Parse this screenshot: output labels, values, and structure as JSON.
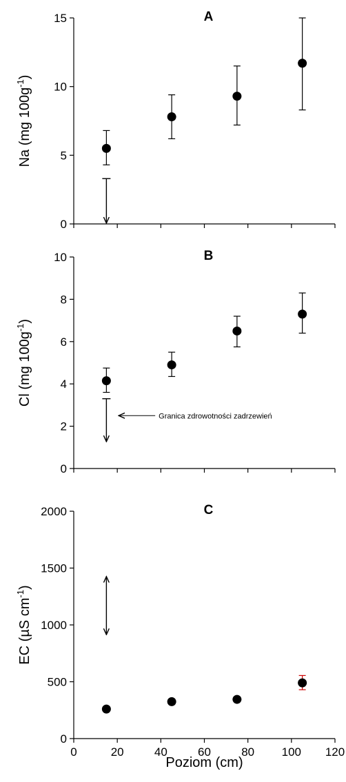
{
  "chart_data": [
    {
      "type": "scatter",
      "panel_label": "A",
      "ylabel": "Na (mg 100g",
      "ylabel_sup": "-1",
      "ylabel_close": ")",
      "xlim": [
        0,
        120
      ],
      "ylim": [
        0,
        15
      ],
      "x_ticks": [
        0,
        20,
        40,
        60,
        80,
        100,
        120
      ],
      "y_ticks": [
        0,
        5,
        10,
        15
      ],
      "points": [
        {
          "x": 15,
          "y": 5.5,
          "err_low": 4.3,
          "err_high": 6.8
        },
        {
          "x": 45,
          "y": 7.8,
          "err_low": 6.2,
          "err_high": 9.4
        },
        {
          "x": 75,
          "y": 9.3,
          "err_low": 7.2,
          "err_high": 11.5
        },
        {
          "x": 105,
          "y": 11.7,
          "err_low": 8.3,
          "err_high": 15.0
        }
      ],
      "threshold_marker": {
        "x": 15,
        "from": 3.3,
        "to": 0.1,
        "direction": "down"
      }
    },
    {
      "type": "scatter",
      "panel_label": "B",
      "ylabel": "Cl (mg 100g",
      "ylabel_sup": "-1",
      "ylabel_close": ")",
      "xlim": [
        0,
        120
      ],
      "ylim": [
        0,
        10
      ],
      "x_ticks": [
        0,
        20,
        40,
        60,
        80,
        100,
        120
      ],
      "y_ticks": [
        0,
        2,
        4,
        6,
        8,
        10
      ],
      "points": [
        {
          "x": 15,
          "y": 4.15,
          "err_low": 3.6,
          "err_high": 4.75
        },
        {
          "x": 45,
          "y": 4.9,
          "err_low": 4.35,
          "err_high": 5.5
        },
        {
          "x": 75,
          "y": 6.5,
          "err_low": 5.75,
          "err_high": 7.2
        },
        {
          "x": 105,
          "y": 7.3,
          "err_low": 6.4,
          "err_high": 8.3
        }
      ],
      "threshold_marker": {
        "x": 15,
        "from": 3.3,
        "to": 1.3,
        "direction": "down"
      },
      "annotation": {
        "text": "Granica zdrowotności zadrzewień",
        "x": 20,
        "y": 2.5
      }
    },
    {
      "type": "scatter",
      "panel_label": "C",
      "ylabel": "EC (µS cm",
      "ylabel_sup": "-1",
      "ylabel_close": ")",
      "xlabel": "Poziom (cm)",
      "xlim": [
        0,
        120
      ],
      "ylim": [
        0,
        2000
      ],
      "x_ticks": [
        0,
        20,
        40,
        60,
        80,
        100,
        120
      ],
      "y_ticks": [
        0,
        500,
        1000,
        1500,
        2000
      ],
      "points": [
        {
          "x": 15,
          "y": 260
        },
        {
          "x": 45,
          "y": 325
        },
        {
          "x": 75,
          "y": 345
        },
        {
          "x": 105,
          "y": 490,
          "err_low": 430,
          "err_high": 555
        }
      ],
      "threshold_marker": {
        "x": 15,
        "from": 920,
        "to": 1420,
        "direction": "both"
      },
      "colors": {
        "marker": "#000000",
        "last_errorbar": "#cc0000"
      }
    }
  ]
}
